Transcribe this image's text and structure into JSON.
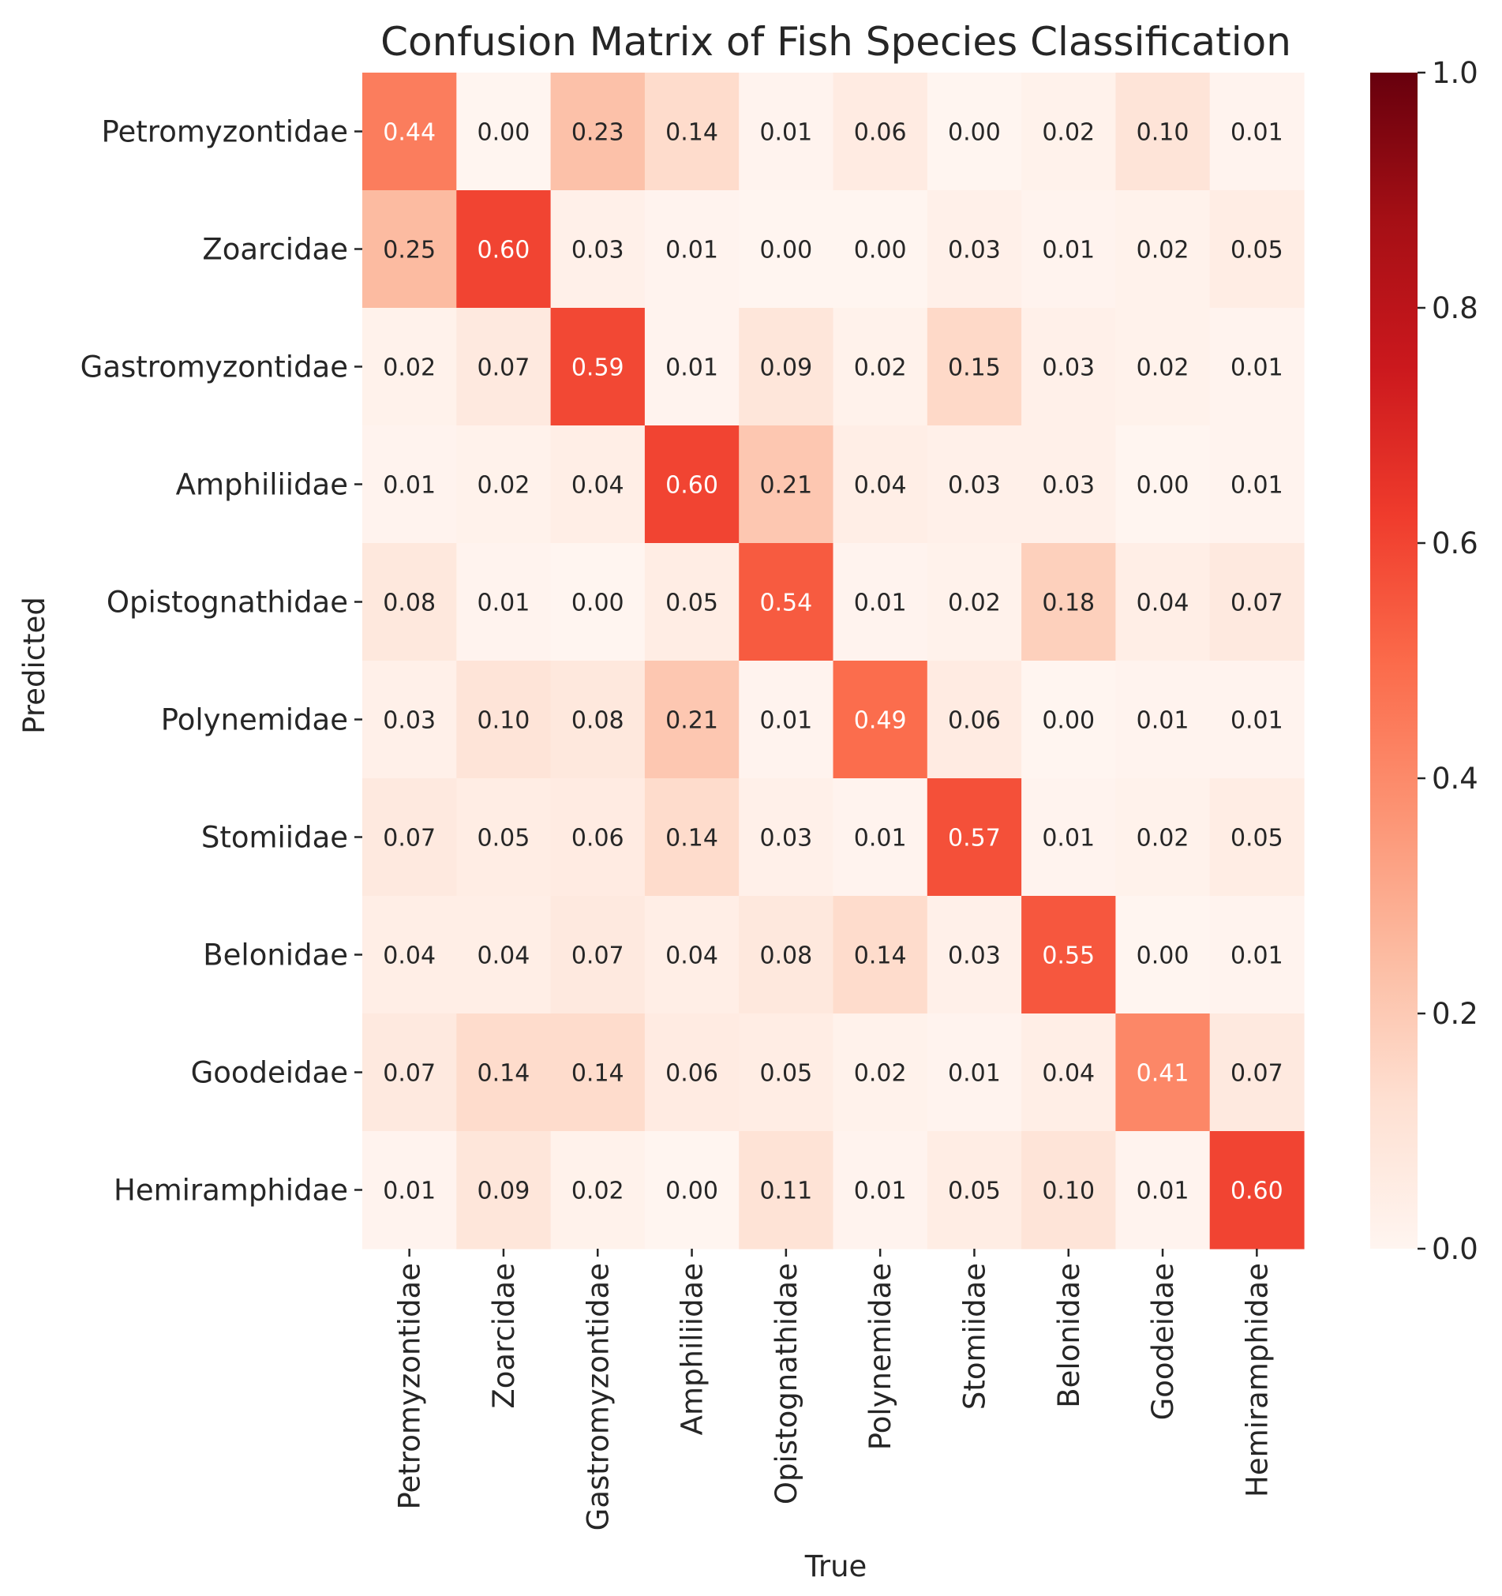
{
  "chart_data": {
    "type": "heatmap",
    "title": "Confusion Matrix of Fish Species Classification",
    "xlabel": "True",
    "ylabel": "Predicted",
    "row_labels": [
      "Petromyzontidae",
      "Zoarcidae",
      "Gastromyzontidae",
      "Amphiliidae",
      "Opistognathidae",
      "Polynemidae",
      "Stomiidae",
      "Belonidae",
      "Goodeidae",
      "Hemiramphidae"
    ],
    "col_labels": [
      "Petromyzontidae",
      "Zoarcidae",
      "Gastromyzontidae",
      "Amphiliidae",
      "Opistognathidae",
      "Polynemidae",
      "Stomiidae",
      "Belonidae",
      "Goodeidae",
      "Hemiramphidae"
    ],
    "matrix": [
      [
        0.44,
        0.0,
        0.23,
        0.14,
        0.01,
        0.06,
        0.0,
        0.02,
        0.1,
        0.01
      ],
      [
        0.25,
        0.6,
        0.03,
        0.01,
        0.0,
        0.0,
        0.03,
        0.01,
        0.02,
        0.05
      ],
      [
        0.02,
        0.07,
        0.59,
        0.01,
        0.09,
        0.02,
        0.15,
        0.03,
        0.02,
        0.01
      ],
      [
        0.01,
        0.02,
        0.04,
        0.6,
        0.21,
        0.04,
        0.03,
        0.03,
        0.0,
        0.01
      ],
      [
        0.08,
        0.01,
        0.0,
        0.05,
        0.54,
        0.01,
        0.02,
        0.18,
        0.04,
        0.07
      ],
      [
        0.03,
        0.1,
        0.08,
        0.21,
        0.01,
        0.49,
        0.06,
        0.0,
        0.01,
        0.01
      ],
      [
        0.07,
        0.05,
        0.06,
        0.14,
        0.03,
        0.01,
        0.57,
        0.01,
        0.02,
        0.05
      ],
      [
        0.04,
        0.04,
        0.07,
        0.04,
        0.08,
        0.14,
        0.03,
        0.55,
        0.0,
        0.01
      ],
      [
        0.07,
        0.14,
        0.14,
        0.06,
        0.05,
        0.02,
        0.01,
        0.04,
        0.41,
        0.07
      ],
      [
        0.01,
        0.09,
        0.02,
        0.0,
        0.11,
        0.01,
        0.05,
        0.1,
        0.01,
        0.6
      ]
    ],
    "value_format": "0.00",
    "colormap": "Reds",
    "vmin": 0.0,
    "vmax": 1.0,
    "colorbar_ticks": [
      "0.0",
      "0.2",
      "0.4",
      "0.6",
      "0.8",
      "1.0"
    ],
    "colorbar_tick_values": [
      0.0,
      0.2,
      0.4,
      0.6,
      0.8,
      1.0
    ]
  },
  "colors": {
    "text_dark": "#262626",
    "text_light": "#ffffff",
    "colormap_stops": [
      "#fff5f0",
      "#fee0d2",
      "#fcbba1",
      "#fc9272",
      "#fb6a4a",
      "#ef3b2c",
      "#cb181d",
      "#a50f15",
      "#67000d"
    ]
  }
}
